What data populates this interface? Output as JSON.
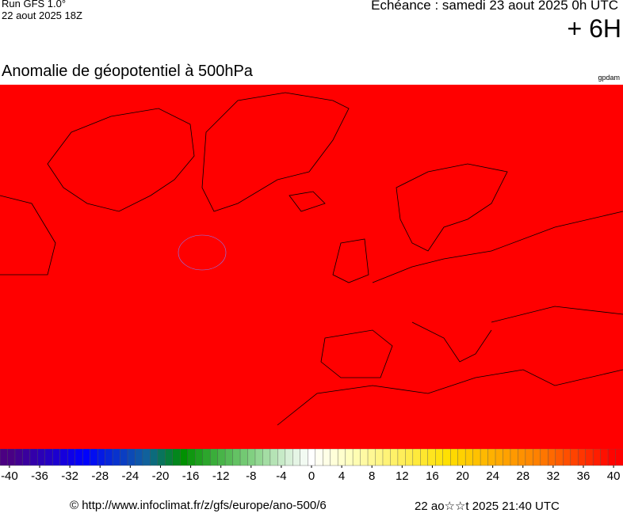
{
  "header": {
    "run": "Run GFS 1.0°",
    "run_date": "22 aout 2025 18Z",
    "valid_time": "Echéance : samedi 23 aout 2025 0h UTC",
    "lead": "+ 6H"
  },
  "map": {
    "title": "Anomalie de géopotentiel à 500hPa",
    "unit": "gpdam",
    "fill_color": "#ff0000",
    "coast_color": "#000000"
  },
  "colorbar": {
    "range": [
      -41.25,
      41.25
    ],
    "ticks": [
      -40,
      -36,
      -32,
      -28,
      -24,
      -20,
      -16,
      -12,
      -8,
      -4,
      0,
      4,
      8,
      12,
      16,
      20,
      24,
      28,
      32,
      36,
      40
    ],
    "color_stops": [
      {
        "value": -40,
        "color": "#4b0082"
      },
      {
        "value": -30,
        "color": "#0000ff"
      },
      {
        "value": -22,
        "color": "#1060a0"
      },
      {
        "value": -17,
        "color": "#009000"
      },
      {
        "value": -8,
        "color": "#80d080"
      },
      {
        "value": -3,
        "color": "#d8f0d8"
      },
      {
        "value": 0,
        "color": "#ffffff"
      },
      {
        "value": 5,
        "color": "#ffffc0"
      },
      {
        "value": 18,
        "color": "#ffe000"
      },
      {
        "value": 30,
        "color": "#ff8000"
      },
      {
        "value": 40,
        "color": "#ff0000"
      }
    ]
  },
  "footer": {
    "source": "© http://www.infoclimat.fr/z/gfs/europe/ano-500/6",
    "generated": "22 ao☆☆t 2025 21:40 UTC"
  }
}
